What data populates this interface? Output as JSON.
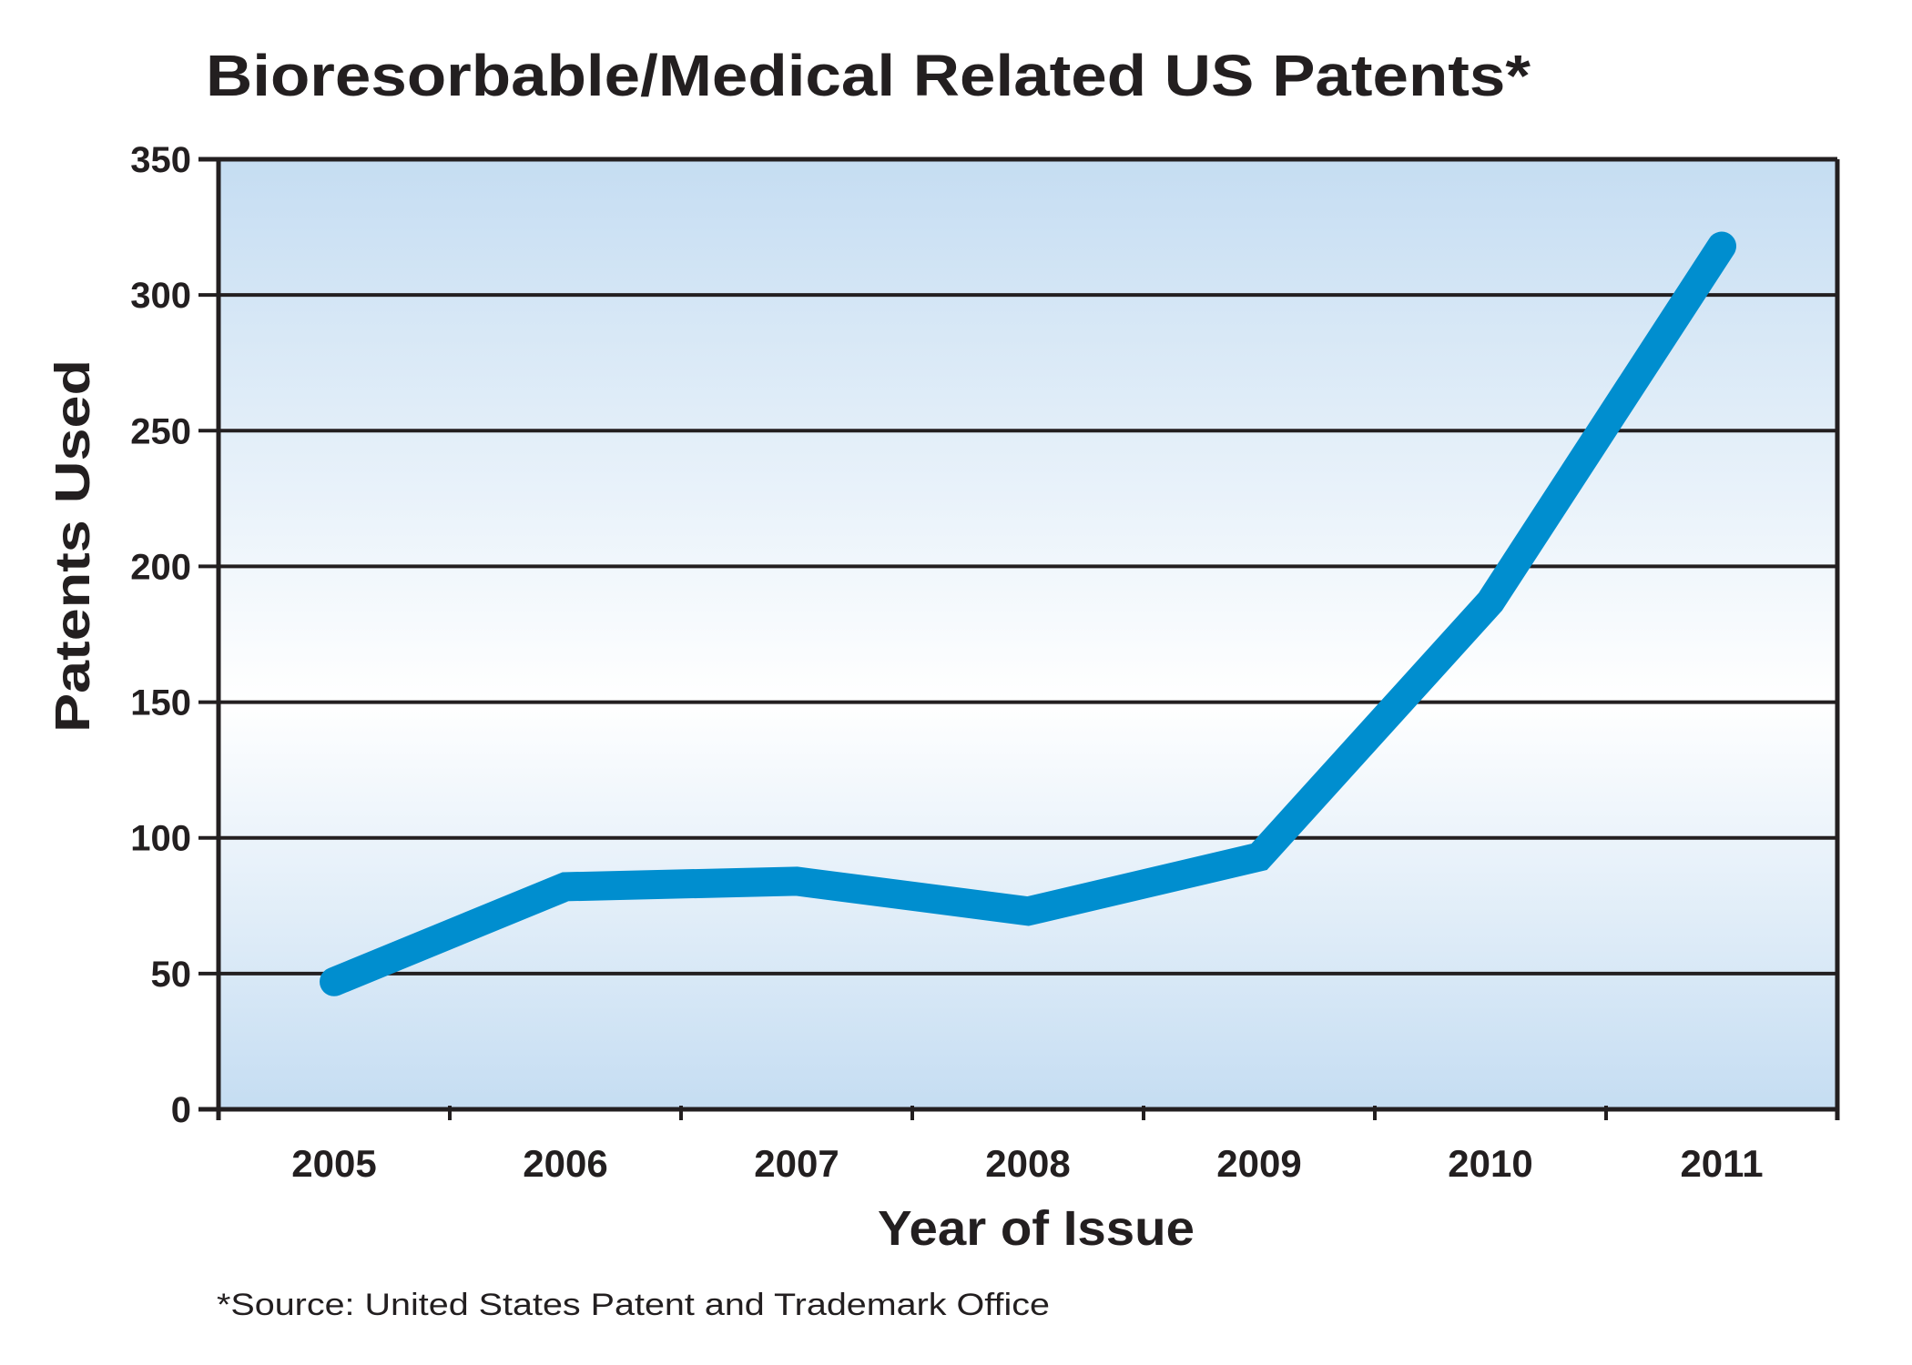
{
  "chart_data": {
    "type": "line",
    "title": "Bioresorbable/Medical Related US Patents*",
    "xlabel": "Year of Issue",
    "ylabel": "Patents Used",
    "categories": [
      "2005",
      "2006",
      "2007",
      "2008",
      "2009",
      "2010",
      "2011"
    ],
    "series": [
      {
        "name": "Patents Used",
        "values": [
          47,
          82,
          84,
          73,
          93,
          187,
          318
        ],
        "color": "#008ecf"
      }
    ],
    "ylim": [
      0,
      350
    ],
    "yticks": [
      0,
      50,
      100,
      150,
      200,
      250,
      300,
      350
    ],
    "ytick_labels": [
      "0",
      "50",
      "100",
      "150",
      "200",
      "250",
      "300",
      "350"
    ],
    "grid": true,
    "legend": "none",
    "footnote": "*Source: United States Patent and Trademark Office",
    "colors": {
      "line": "#008ecf",
      "axis": "#231f20",
      "background_edge": "#c5ddf2",
      "background_center": "#ffffff"
    }
  }
}
